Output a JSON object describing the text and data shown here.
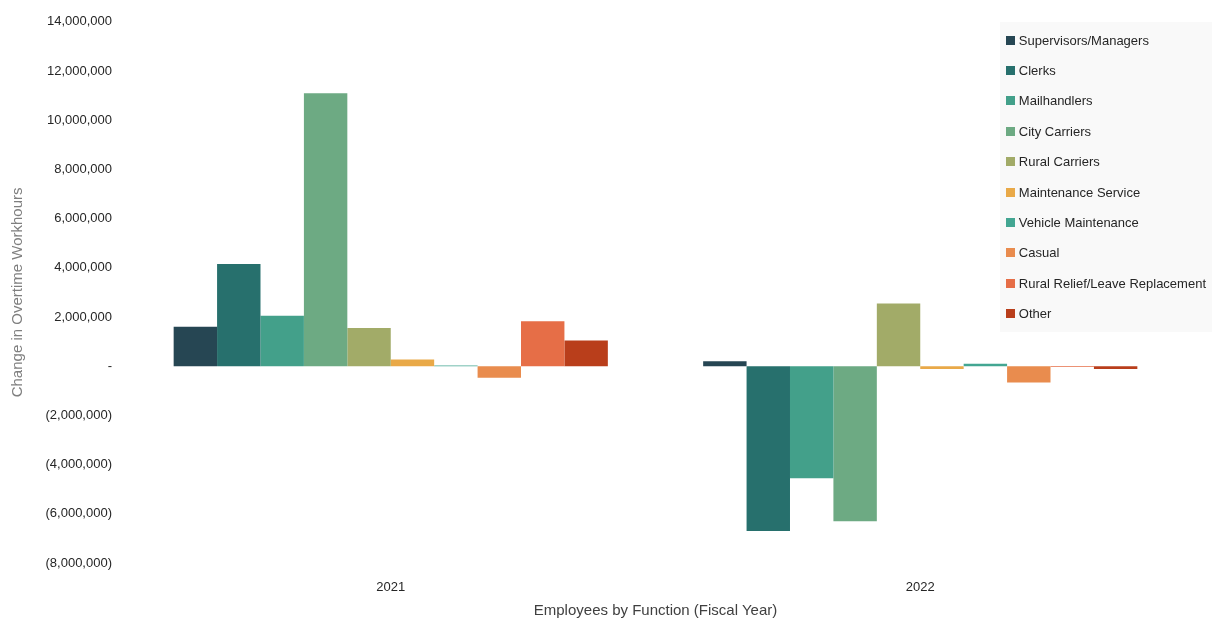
{
  "chart_data": {
    "type": "bar",
    "xlabel": "Employees by Function (Fiscal Year)",
    "ylabel": "Change in Overtime Workhours",
    "categories": [
      "2021",
      "2022"
    ],
    "series": [
      {
        "name": "Supervisors/Managers",
        "color": "#264653",
        "values": [
          1600000,
          200000
        ]
      },
      {
        "name": "Clerks",
        "color": "#27706d",
        "values": [
          4150000,
          -6700000
        ]
      },
      {
        "name": "Mailhandlers",
        "color": "#43a08a",
        "values": [
          2050000,
          -4550000
        ]
      },
      {
        "name": "City Carriers",
        "color": "#6daa83",
        "values": [
          11100000,
          -6300000
        ]
      },
      {
        "name": "Rural Carriers",
        "color": "#a2ab68",
        "values": [
          1550000,
          2550000
        ]
      },
      {
        "name": "Maintenance Service",
        "color": "#e9a948",
        "values": [
          270000,
          -110000
        ]
      },
      {
        "name": "Vehicle Maintenance",
        "color": "#43a692",
        "values": [
          30000,
          100000
        ]
      },
      {
        "name": "Casual",
        "color": "#e98c4e",
        "values": [
          -470000,
          -660000
        ]
      },
      {
        "name": "Rural Relief/Leave Replacement",
        "color": "#e66e47",
        "values": [
          1830000,
          -30000
        ]
      },
      {
        "name": "Other",
        "color": "#b93e1b",
        "values": [
          1040000,
          -110000
        ]
      }
    ],
    "ylim": [
      -8000000,
      14000000
    ],
    "yticks": [
      {
        "value": -8000000,
        "label": "(8,000,000)"
      },
      {
        "value": -6000000,
        "label": "(6,000,000)"
      },
      {
        "value": -4000000,
        "label": "(4,000,000)"
      },
      {
        "value": -2000000,
        "label": "(2,000,000)"
      },
      {
        "value": 0,
        "label": "-"
      },
      {
        "value": 2000000,
        "label": "2,000,000"
      },
      {
        "value": 4000000,
        "label": "4,000,000"
      },
      {
        "value": 6000000,
        "label": "6,000,000"
      },
      {
        "value": 8000000,
        "label": "8,000,000"
      },
      {
        "value": 10000000,
        "label": "10,000,000"
      },
      {
        "value": 12000000,
        "label": "12,000,000"
      },
      {
        "value": 14000000,
        "label": "14,000,000"
      }
    ],
    "grid": false,
    "legend": "top right"
  }
}
